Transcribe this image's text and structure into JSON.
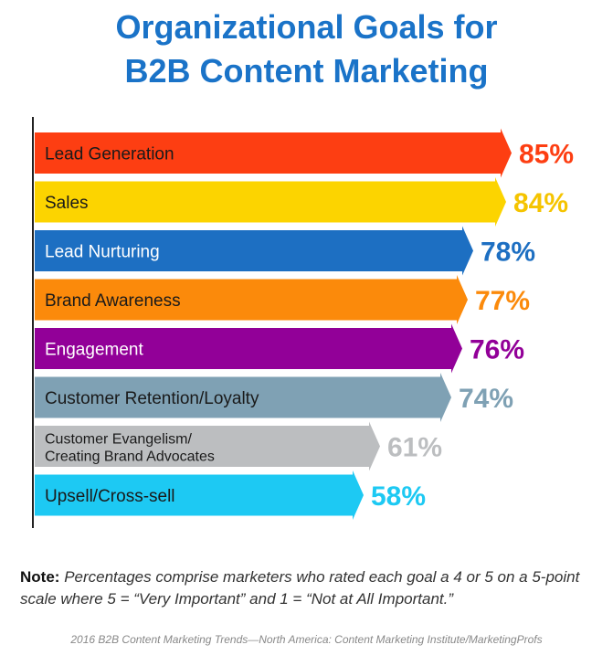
{
  "title_line1": "Organizational Goals for",
  "title_line2": "B2B Content Marketing",
  "note": {
    "label": "Note:",
    "text": "Percentages comprise marketers who rated each goal a 4 or 5 on a 5-point scale where 5 = “Very Important” and 1 = “Not at All Important.”"
  },
  "source": "2016 B2B Content Marketing Trends—North America: Content Marketing Institute/MarketingProfs",
  "chart_data": {
    "type": "bar",
    "orientation": "horizontal",
    "title": "Organizational Goals for B2B Content Marketing",
    "xlabel": "",
    "ylabel": "",
    "xlim": [
      0,
      100
    ],
    "grid": false,
    "legend": "none",
    "categories": [
      "Lead Generation",
      "Sales",
      "Lead Nurturing",
      "Brand Awareness",
      "Engagement",
      "Customer Retention/Loyalty",
      "Customer Evangelism/\nCreating Brand Advocates",
      "Upsell/Cross-sell"
    ],
    "values": [
      85,
      84,
      78,
      77,
      76,
      74,
      61,
      58
    ],
    "value_labels": [
      "85%",
      "84%",
      "78%",
      "77%",
      "76%",
      "74%",
      "61%",
      "58%"
    ],
    "colors": [
      "#fd3e12",
      "#fcd400",
      "#1d6fc2",
      "#fb8a0b",
      "#920098",
      "#7fa1b4",
      "#bcbec0",
      "#1dc9f3"
    ]
  }
}
